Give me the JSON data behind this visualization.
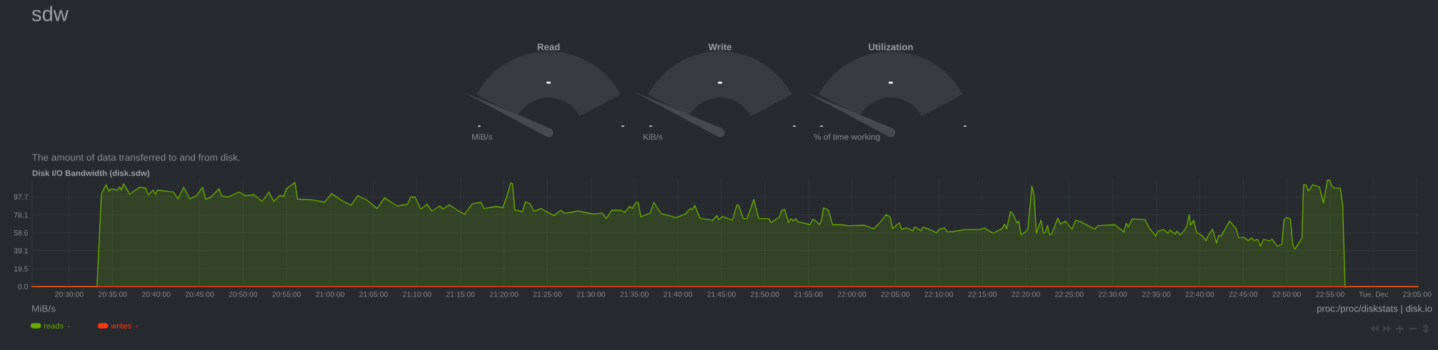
{
  "chart_data": [
    {
      "type": "other",
      "title": "sdw"
    },
    {
      "type": "other",
      "title": "Read",
      "annotations": [
        "-",
        "-",
        "-",
        "MiB/s"
      ]
    },
    {
      "type": "other",
      "title": "Write",
      "annotations": [
        "-",
        "-",
        "-",
        "KiB/s"
      ]
    },
    {
      "type": "other",
      "title": "Utilization",
      "annotations": [
        "-",
        "-",
        "-",
        "% of time working"
      ]
    },
    {
      "type": "area",
      "subtitle": "The amount of data transferred to and from disk.",
      "title": "Disk I/O Bandwidth (disk.sdw)",
      "xlim": [
        20.429,
        23.085
      ],
      "xticks": [
        {
          "value": 20.5,
          "label": "20:30:00"
        },
        {
          "value": 20.5833,
          "label": "20:35:00"
        },
        {
          "value": 20.6667,
          "label": "20:40:00"
        },
        {
          "value": 20.75,
          "label": "20:45:00"
        },
        {
          "value": 20.8333,
          "label": "20:50:00"
        },
        {
          "value": 20.9167,
          "label": "20:55:00"
        },
        {
          "value": 21.0,
          "label": "21:00:00"
        },
        {
          "value": 21.0833,
          "label": "21:05:00"
        },
        {
          "value": 21.1667,
          "label": "21:10:00"
        },
        {
          "value": 21.25,
          "label": "21:15:00"
        },
        {
          "value": 21.3333,
          "label": "21:20:00"
        },
        {
          "value": 21.4167,
          "label": "21:25:00"
        },
        {
          "value": 21.5,
          "label": "21:30:00"
        },
        {
          "value": 21.5833,
          "label": "21:35:00"
        },
        {
          "value": 21.6667,
          "label": "21:40:00"
        },
        {
          "value": 21.75,
          "label": "21:45:00"
        },
        {
          "value": 21.8333,
          "label": "21:50:00"
        },
        {
          "value": 21.9167,
          "label": "21:55:00"
        },
        {
          "value": 22.0,
          "label": "22:00:00"
        },
        {
          "value": 22.0833,
          "label": "22:05:00"
        },
        {
          "value": 22.1667,
          "label": "22:10:00"
        },
        {
          "value": 22.25,
          "label": "22:15:00"
        },
        {
          "value": 22.3333,
          "label": "22:20:00"
        },
        {
          "value": 22.4167,
          "label": "22:25:00"
        },
        {
          "value": 22.5,
          "label": "22:30:00"
        },
        {
          "value": 22.5833,
          "label": "22:35:00"
        },
        {
          "value": 22.6667,
          "label": "22:40:00"
        },
        {
          "value": 22.75,
          "label": "22:45:00"
        },
        {
          "value": 22.8333,
          "label": "22:50:00"
        },
        {
          "value": 22.9167,
          "label": "22:55:00"
        },
        {
          "value": 23.0,
          "label": "Tue, Dec"
        },
        {
          "value": 23.0833,
          "label": "23:05:00"
        }
      ],
      "ylim": [
        0,
        117.2
      ],
      "yticks": [
        {
          "value": 0,
          "label": "0.0"
        },
        19.5,
        39.1,
        58.6,
        78.1,
        97.7
      ],
      "grid": true,
      "legend": "bottom left",
      "series": [
        {
          "name": "reads",
          "color": "#66aa00",
          "x": [
            20.429,
            20.5533,
            20.5618,
            20.5709,
            20.5758,
            20.5812,
            20.5921,
            20.597,
            20.6,
            20.6042,
            20.6164,
            20.6345,
            20.6467,
            20.6515,
            20.6612,
            20.6648,
            20.6697,
            20.7,
            20.7085,
            20.7194,
            20.7315,
            20.7436,
            20.7557,
            20.7618,
            20.7715,
            20.7872,
            20.7921,
            20.8042,
            20.8254,
            20.8375,
            20.8539,
            20.8697,
            20.883,
            20.8921,
            20.9042,
            20.9103,
            20.9163,
            20.9327,
            20.9375,
            20.969,
            20.989,
            21.003,
            21.0224,
            21.0406,
            21.0527,
            21.0709,
            21.0903,
            21.1042,
            21.1284,
            21.1484,
            21.1545,
            21.163,
            21.1739,
            21.186,
            21.1951,
            21.2103,
            21.2164,
            21.2285,
            21.2467,
            21.2576,
            21.2727,
            21.289,
            21.2951,
            21.3192,
            21.331,
            21.3392,
            21.3463,
            21.3498,
            21.354,
            21.3687,
            21.3746,
            21.3835,
            21.3911,
            21.404,
            21.4289,
            21.4424,
            21.4501,
            21.4748,
            21.5043,
            21.522,
            21.5291,
            21.5397,
            21.5574,
            21.5645,
            21.574,
            21.5792,
            21.5869,
            21.5904,
            21.5957,
            21.6134,
            21.6205,
            21.6293,
            21.634,
            21.6635,
            21.6812,
            21.69,
            21.6948,
            21.6989,
            21.7083,
            21.7125,
            21.7331,
            21.7414,
            21.7449,
            21.752,
            21.7709,
            21.7797,
            21.7832,
            21.7921,
            21.7992,
            21.8121,
            21.8216,
            21.8404,
            21.8452,
            21.8611,
            21.8658,
            21.8711,
            21.8788,
            21.8835,
            21.8876,
            21.8923,
            21.8959,
            21.92,
            21.9248,
            21.9307,
            21.9377,
            21.9419,
            21.9454,
            21.9549,
            21.9631,
            21.9791,
            21.9926,
            22.0233,
            22.0421,
            22.0527,
            22.0657,
            22.0734,
            22.0781,
            22.0911,
            22.0952,
            22.1046,
            22.1164,
            22.1206,
            22.1324,
            22.1365,
            22.1531,
            22.1619,
            22.1678,
            22.1778,
            22.1825,
            22.1943,
            22.2162,
            22.2442,
            22.2541,
            22.2704,
            22.2879,
            22.2925,
            22.2966,
            22.3042,
            22.3089,
            22.3159,
            22.3199,
            22.324,
            22.3333,
            22.3374,
            22.3415,
            22.345,
            22.3491,
            22.3537,
            22.3625,
            22.3671,
            22.3706,
            22.3753,
            22.3788,
            22.3829,
            22.3945,
            22.3998,
            22.4091,
            22.4219,
            22.4289,
            22.4394,
            22.4656,
            22.4715,
            22.5035,
            22.5152,
            22.521,
            22.5257,
            22.5297,
            22.5373,
            22.5618,
            22.5688,
            22.5781,
            22.5822,
            22.5863,
            22.5968,
            22.6055,
            22.6096,
            22.6201,
            22.623,
            22.6288,
            22.6376,
            22.6422,
            22.6463,
            22.6492,
            22.6551,
            22.6609,
            22.6725,
            22.6784,
            22.683,
            22.6912,
            22.6947,
            22.6988,
            22.7028,
            22.7075,
            22.7238,
            22.7366,
            22.7413,
            22.7512,
            22.7599,
            22.7658,
            22.7716,
            22.7774,
            22.7833,
            22.7891,
            22.7996,
            22.8054,
            22.8153,
            22.8241,
            22.8281,
            22.8333,
            22.8403,
            22.8449,
            22.8491,
            22.861,
            22.8627,
            22.8656,
            22.8703,
            22.8744,
            22.8791,
            22.8832,
            22.8961,
            22.9037,
            22.9115,
            22.9156,
            22.9202,
            22.9243,
            22.936,
            22.9406,
            22.9453,
            23.085
          ],
          "values": [
            0,
            0,
            101.2,
            110.9,
            104.0,
            106.4,
            105.0,
            108.5,
            105.0,
            111.9,
            100.5,
            108.1,
            107.1,
            100.1,
            105.0,
            100.5,
            105.0,
            102.9,
            95.3,
            108.1,
            95.3,
            98.8,
            108.1,
            95.0,
            97.4,
            106.4,
            98.8,
            97.4,
            102.9,
            98.8,
            100.1,
            92.5,
            102.9,
            92.5,
            99.4,
            97.7,
            106.4,
            113.3,
            95.3,
            94.2,
            91.8,
            101.2,
            93.6,
            88.4,
            99.1,
            93.9,
            84.9,
            96.7,
            87.7,
            89.7,
            97.4,
            97.4,
            84.2,
            89.7,
            82.1,
            87.7,
            84.2,
            89.1,
            82.1,
            78.7,
            90.1,
            91.8,
            84.9,
            87.3,
            85.7,
            99.0,
            113.0,
            111.7,
            83.3,
            81.7,
            92.3,
            90.0,
            81.7,
            85.0,
            77.3,
            83.0,
            79.7,
            82.3,
            79.0,
            80.0,
            74.0,
            83.0,
            83.0,
            80.7,
            87.3,
            85.0,
            91.7,
            91.7,
            75.7,
            80.0,
            91.7,
            84.0,
            79.7,
            75.0,
            79.0,
            84.7,
            84.0,
            88.3,
            75.0,
            74.0,
            72.3,
            77.3,
            73.0,
            76.3,
            72.3,
            89.0,
            88.3,
            74.0,
            74.0,
            94.7,
            74.0,
            74.0,
            69.7,
            75.7,
            83.0,
            84.0,
            69.7,
            74.0,
            71.3,
            74.0,
            70.7,
            67.3,
            73.3,
            71.7,
            67.3,
            72.3,
            85.7,
            83.3,
            67.3,
            67.3,
            66.3,
            66.7,
            63.0,
            69.0,
            78.3,
            75.7,
            63.0,
            69.7,
            62.3,
            64.0,
            60.7,
            65.0,
            60.7,
            64.7,
            61.3,
            58.3,
            62.3,
            64.0,
            59.7,
            60.0,
            62.0,
            62.0,
            63.7,
            58.1,
            63.0,
            68.0,
            63.0,
            81.8,
            78.9,
            69.6,
            71.3,
            56.4,
            59.7,
            63.0,
            87.8,
            109.2,
            100.3,
            58.1,
            72.3,
            58.1,
            59.1,
            66.3,
            56.4,
            57.1,
            74.6,
            68.0,
            71.3,
            62.4,
            72.3,
            70.3,
            62.4,
            66.3,
            67.3,
            62.4,
            59.1,
            69.0,
            64.7,
            73.6,
            72.9,
            64.7,
            58.1,
            54.8,
            60.4,
            62.0,
            58.1,
            61.4,
            57.1,
            60.4,
            56.4,
            61.4,
            66.3,
            78.5,
            67.0,
            72.3,
            59.1,
            54.8,
            49.8,
            55.8,
            62.4,
            55.8,
            47.2,
            55.8,
            54.8,
            71.3,
            63.0,
            53.1,
            53.8,
            49.8,
            53.1,
            49.8,
            51.5,
            43.9,
            51.5,
            49.8,
            51.5,
            43.9,
            45.9,
            72.3,
            75.2,
            73.6,
            45.9,
            40.6,
            51.5,
            53.1,
            110.9,
            110.9,
            104.3,
            106.6,
            110.9,
            108.5,
            91.1,
            115.8,
            115.8,
            109.2,
            107.2,
            107.2,
            89.4,
            0,
            0
          ]
        },
        {
          "name": "writes",
          "type": "line",
          "color": "#fe3912",
          "x": [
            20.429,
            23.085
          ],
          "values": [
            0,
            0
          ]
        }
      ],
      "annotations": [
        "-",
        "-",
        "MiB/s",
        "proc:/proc/diskstats | disk.io"
      ]
    }
  ]
}
